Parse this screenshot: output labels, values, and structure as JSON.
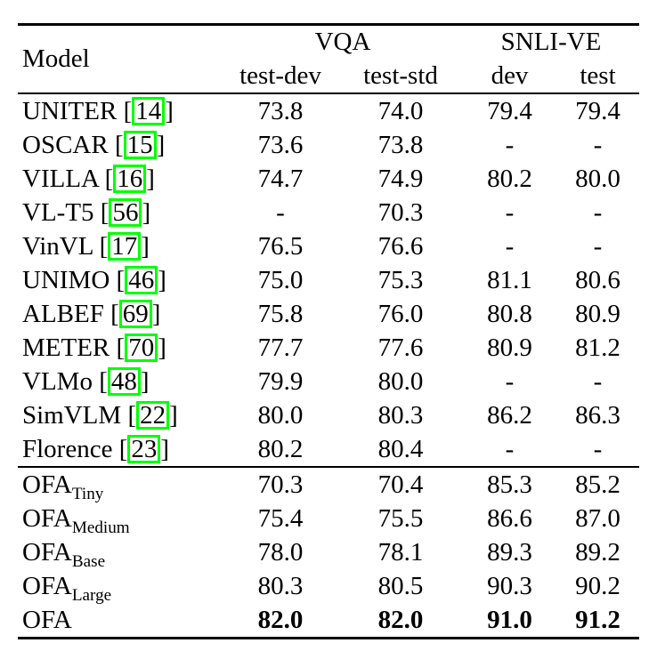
{
  "page": {
    "background_color": "#ffffff",
    "text_color": "#000000",
    "citation_box_color": "#00ff00"
  },
  "table": {
    "header": {
      "model_label": "Model",
      "groups": [
        {
          "label": "VQA",
          "colspan": 2
        },
        {
          "label": "SNLI-VE",
          "colspan": 2
        }
      ],
      "columns": [
        "test-dev",
        "test-std",
        "dev",
        "test"
      ]
    },
    "sections": [
      {
        "name": "baselines",
        "rows": [
          {
            "model": "UNITER",
            "cite": "14",
            "values": [
              "73.8",
              "74.0",
              "79.4",
              "79.4"
            ]
          },
          {
            "model": "OSCAR",
            "cite": "15",
            "values": [
              "73.6",
              "73.8",
              "-",
              "-"
            ]
          },
          {
            "model": "VILLA",
            "cite": "16",
            "values": [
              "74.7",
              "74.9",
              "80.2",
              "80.0"
            ]
          },
          {
            "model": "VL-T5",
            "cite": "56",
            "values": [
              "-",
              "70.3",
              "-",
              "-"
            ]
          },
          {
            "model": "VinVL",
            "cite": "17",
            "values": [
              "76.5",
              "76.6",
              "-",
              "-"
            ]
          },
          {
            "model": "UNIMO",
            "cite": "46",
            "values": [
              "75.0",
              "75.3",
              "81.1",
              "80.6"
            ]
          },
          {
            "model": "ALBEF",
            "cite": "69",
            "values": [
              "75.8",
              "76.0",
              "80.8",
              "80.9"
            ]
          },
          {
            "model": "METER",
            "cite": "70",
            "values": [
              "77.7",
              "77.6",
              "80.9",
              "81.2"
            ]
          },
          {
            "model": "VLMo",
            "cite": "48",
            "values": [
              "79.9",
              "80.0",
              "-",
              "-"
            ]
          },
          {
            "model": "SimVLM",
            "cite": "22",
            "values": [
              "80.0",
              "80.3",
              "86.2",
              "86.3"
            ]
          },
          {
            "model": "Florence",
            "cite": "23",
            "values": [
              "80.2",
              "80.4",
              "-",
              "-"
            ]
          }
        ]
      },
      {
        "name": "ofa",
        "rows": [
          {
            "model": "OFA",
            "subscript": "Tiny",
            "values": [
              "70.3",
              "70.4",
              "85.3",
              "85.2"
            ]
          },
          {
            "model": "OFA",
            "subscript": "Medium",
            "values": [
              "75.4",
              "75.5",
              "86.6",
              "87.0"
            ]
          },
          {
            "model": "OFA",
            "subscript": "Base",
            "values": [
              "78.0",
              "78.1",
              "89.3",
              "89.2"
            ]
          },
          {
            "model": "OFA",
            "subscript": "Large",
            "values": [
              "80.3",
              "80.5",
              "90.3",
              "90.2"
            ]
          },
          {
            "model": "OFA",
            "bold_values": true,
            "values": [
              "82.0",
              "82.0",
              "91.0",
              "91.2"
            ]
          }
        ]
      }
    ]
  }
}
